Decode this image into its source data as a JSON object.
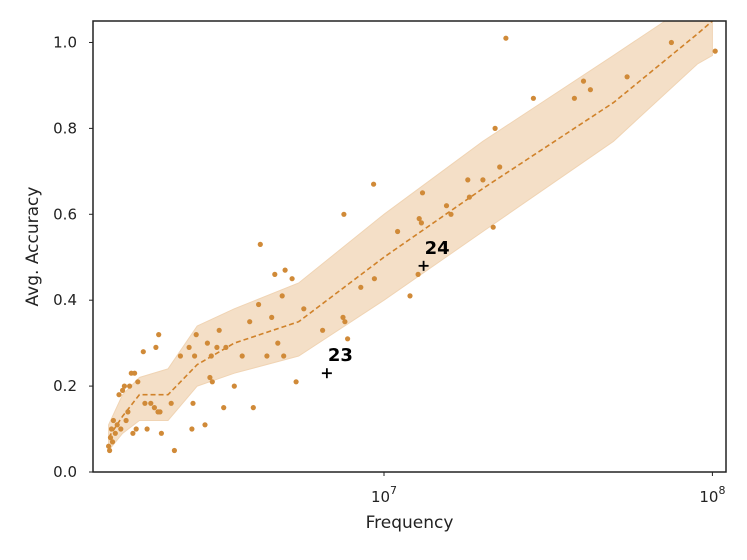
{
  "chart_data": {
    "type": "scatter",
    "xlabel": "Frequency",
    "ylabel": "Avg. Accuracy",
    "xscale": "log",
    "xlim": [
      1300000,
      110000000
    ],
    "ylim": [
      0,
      1.05
    ],
    "xticks": [
      10000000,
      100000000
    ],
    "yticks": [
      0,
      0.2,
      0.4,
      0.6,
      0.8,
      1.0
    ],
    "ytick_labels": [
      "0.0",
      "0.2",
      "0.4",
      "0.6",
      "0.8",
      "1.0"
    ],
    "grid": false,
    "colors": {
      "points": "#d08a38",
      "trend": "#d0822a",
      "band": "#f0d4b4",
      "annotations": "#000000",
      "frame": "#222222"
    },
    "points": [
      {
        "x": 1450000,
        "y": 0.06
      },
      {
        "x": 1460000,
        "y": 0.05
      },
      {
        "x": 1470000,
        "y": 0.08
      },
      {
        "x": 1480000,
        "y": 0.1
      },
      {
        "x": 1490000,
        "y": 0.07
      },
      {
        "x": 1500000,
        "y": 0.12
      },
      {
        "x": 1520000,
        "y": 0.09
      },
      {
        "x": 1540000,
        "y": 0.11
      },
      {
        "x": 1560000,
        "y": 0.18
      },
      {
        "x": 1580000,
        "y": 0.1
      },
      {
        "x": 1600000,
        "y": 0.19
      },
      {
        "x": 1620000,
        "y": 0.2
      },
      {
        "x": 1640000,
        "y": 0.12
      },
      {
        "x": 1660000,
        "y": 0.14
      },
      {
        "x": 1680000,
        "y": 0.2
      },
      {
        "x": 1700000,
        "y": 0.23
      },
      {
        "x": 1720000,
        "y": 0.09
      },
      {
        "x": 1740000,
        "y": 0.23
      },
      {
        "x": 1760000,
        "y": 0.1
      },
      {
        "x": 1780000,
        "y": 0.21
      },
      {
        "x": 1850000,
        "y": 0.28
      },
      {
        "x": 1870000,
        "y": 0.16
      },
      {
        "x": 1900000,
        "y": 0.1
      },
      {
        "x": 1950000,
        "y": 0.16
      },
      {
        "x": 2000000,
        "y": 0.15
      },
      {
        "x": 2020000,
        "y": 0.29
      },
      {
        "x": 2050000,
        "y": 0.14
      },
      {
        "x": 2060000,
        "y": 0.32
      },
      {
        "x": 2080000,
        "y": 0.14
      },
      {
        "x": 2100000,
        "y": 0.09
      },
      {
        "x": 2250000,
        "y": 0.16
      },
      {
        "x": 2300000,
        "y": 0.05
      },
      {
        "x": 2400000,
        "y": 0.27
      },
      {
        "x": 2550000,
        "y": 0.29
      },
      {
        "x": 2600000,
        "y": 0.1
      },
      {
        "x": 2620000,
        "y": 0.16
      },
      {
        "x": 2650000,
        "y": 0.27
      },
      {
        "x": 2680000,
        "y": 0.32
      },
      {
        "x": 2850000,
        "y": 0.11
      },
      {
        "x": 2900000,
        "y": 0.3
      },
      {
        "x": 2950000,
        "y": 0.22
      },
      {
        "x": 2980000,
        "y": 0.27
      },
      {
        "x": 3000000,
        "y": 0.21
      },
      {
        "x": 3100000,
        "y": 0.29
      },
      {
        "x": 3150000,
        "y": 0.33
      },
      {
        "x": 3250000,
        "y": 0.15
      },
      {
        "x": 3300000,
        "y": 0.29
      },
      {
        "x": 3500000,
        "y": 0.2
      },
      {
        "x": 3700000,
        "y": 0.27
      },
      {
        "x": 3900000,
        "y": 0.35
      },
      {
        "x": 4000000,
        "y": 0.15
      },
      {
        "x": 4150000,
        "y": 0.39
      },
      {
        "x": 4200000,
        "y": 0.53
      },
      {
        "x": 4400000,
        "y": 0.27
      },
      {
        "x": 4550000,
        "y": 0.36
      },
      {
        "x": 4650000,
        "y": 0.46
      },
      {
        "x": 4750000,
        "y": 0.3
      },
      {
        "x": 4900000,
        "y": 0.41
      },
      {
        "x": 4950000,
        "y": 0.27
      },
      {
        "x": 5000000,
        "y": 0.47
      },
      {
        "x": 5250000,
        "y": 0.45
      },
      {
        "x": 5400000,
        "y": 0.21
      },
      {
        "x": 5700000,
        "y": 0.38
      },
      {
        "x": 6500000,
        "y": 0.33
      },
      {
        "x": 7500000,
        "y": 0.36
      },
      {
        "x": 7550000,
        "y": 0.6
      },
      {
        "x": 7600000,
        "y": 0.35
      },
      {
        "x": 7750000,
        "y": 0.31
      },
      {
        "x": 8500000,
        "y": 0.43
      },
      {
        "x": 9300000,
        "y": 0.67
      },
      {
        "x": 9350000,
        "y": 0.45
      },
      {
        "x": 11000000,
        "y": 0.56
      },
      {
        "x": 12000000,
        "y": 0.41
      },
      {
        "x": 12700000,
        "y": 0.46
      },
      {
        "x": 12800000,
        "y": 0.59
      },
      {
        "x": 13000000,
        "y": 0.58
      },
      {
        "x": 13100000,
        "y": 0.65
      },
      {
        "x": 15500000,
        "y": 0.62
      },
      {
        "x": 16000000,
        "y": 0.6
      },
      {
        "x": 18000000,
        "y": 0.68
      },
      {
        "x": 18200000,
        "y": 0.64
      },
      {
        "x": 20000000,
        "y": 0.68
      },
      {
        "x": 21500000,
        "y": 0.57
      },
      {
        "x": 21800000,
        "y": 0.8
      },
      {
        "x": 22500000,
        "y": 0.71
      },
      {
        "x": 23500000,
        "y": 1.01
      },
      {
        "x": 28500000,
        "y": 0.87
      },
      {
        "x": 38000000,
        "y": 0.87
      },
      {
        "x": 40500000,
        "y": 0.91
      },
      {
        "x": 42500000,
        "y": 0.89
      },
      {
        "x": 55000000,
        "y": 0.92
      },
      {
        "x": 75000000,
        "y": 1.0
      },
      {
        "x": 102000000,
        "y": 0.98
      }
    ],
    "trend": {
      "x": [
        1450000,
        1600000,
        1800000,
        2200000,
        2700000,
        3500000,
        5500000,
        10000000,
        20000000,
        50000000,
        90000000,
        100000000
      ],
      "mean": [
        0.08,
        0.13,
        0.18,
        0.18,
        0.25,
        0.3,
        0.35,
        0.5,
        0.66,
        0.86,
        1.02,
        1.05
      ],
      "lower": [
        0.05,
        0.09,
        0.12,
        0.12,
        0.2,
        0.23,
        0.27,
        0.4,
        0.56,
        0.77,
        0.95,
        0.97
      ],
      "upper": [
        0.11,
        0.18,
        0.22,
        0.24,
        0.34,
        0.38,
        0.44,
        0.6,
        0.77,
        0.97,
        1.1,
        1.12
      ]
    },
    "annotations": [
      {
        "label": "23",
        "x": 6700000,
        "y": 0.23
      },
      {
        "label": "24",
        "x": 13200000,
        "y": 0.48
      }
    ]
  }
}
